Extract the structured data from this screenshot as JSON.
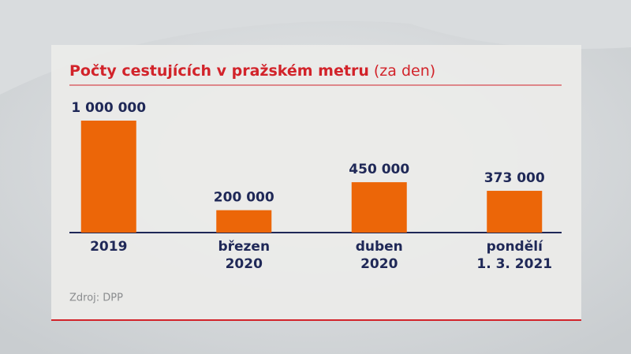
{
  "chart_data": {
    "type": "bar",
    "title": "Počty cestujících v pražském metru",
    "subtitle": "(za den)",
    "categories": [
      [
        "2019"
      ],
      [
        "březen",
        "2020"
      ],
      [
        "duben",
        "2020"
      ],
      [
        "pondělí",
        "1. 3. 2021"
      ]
    ],
    "values": [
      1000000,
      200000,
      450000,
      373000
    ],
    "value_labels": [
      "1 000 000",
      "200 000",
      "450 000",
      "373 000"
    ],
    "color": "#ec6608",
    "source": "Zdroj: DPP"
  }
}
